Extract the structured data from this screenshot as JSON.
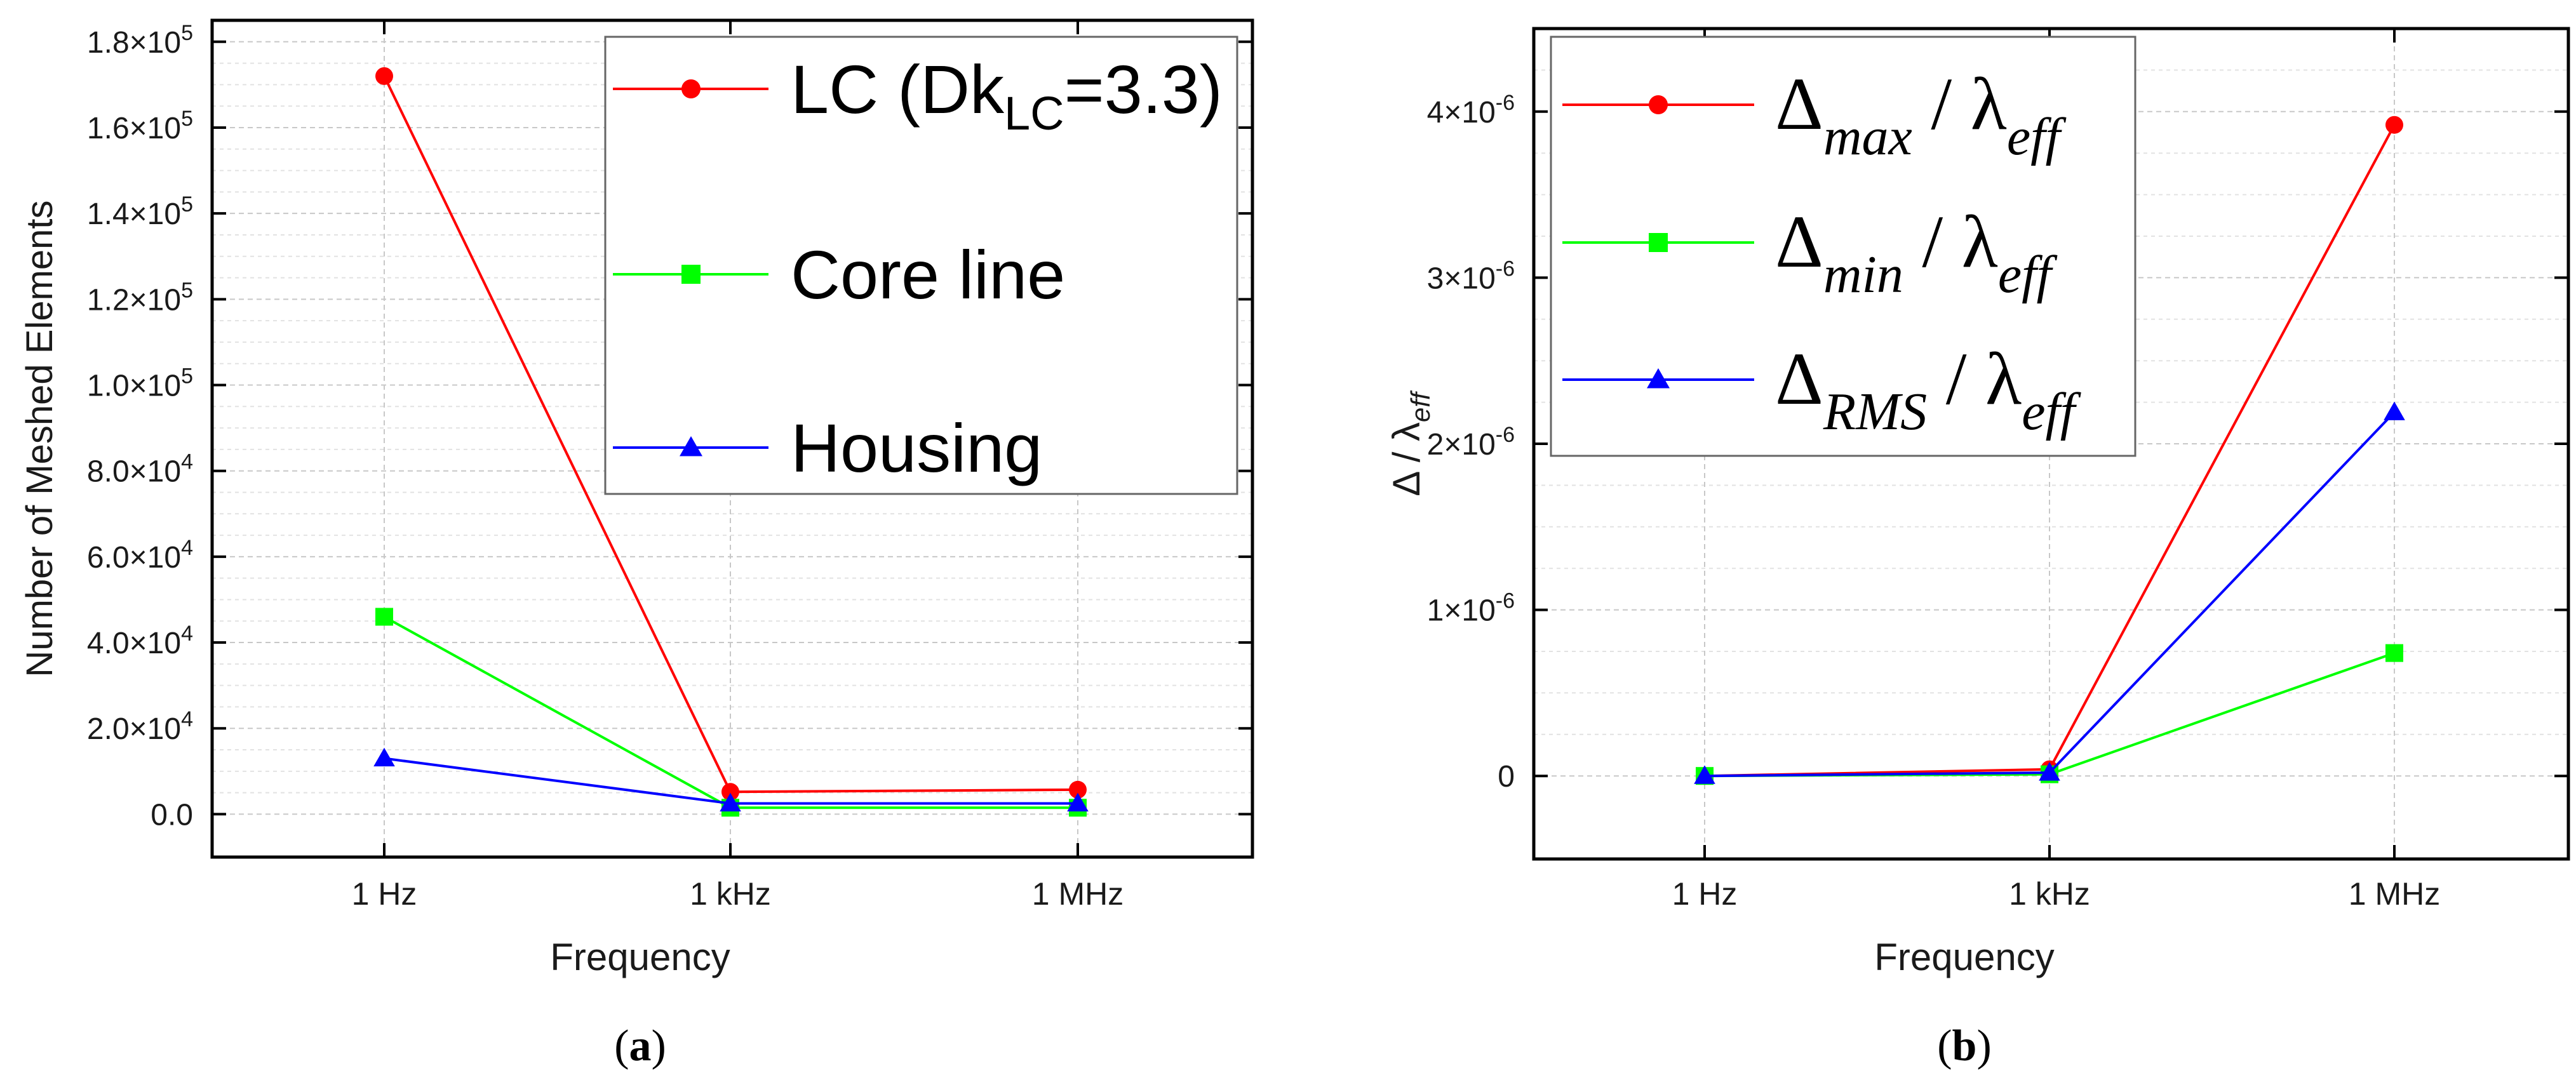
{
  "chart_data": [
    {
      "type": "line",
      "panel_label": "a",
      "xlabel": "Frequency",
      "ylabel": "Number of Meshed Elements",
      "categories": [
        "1 Hz",
        "1 kHz",
        "1 MHz"
      ],
      "ylim": [
        -10000,
        185000
      ],
      "y_ticks": [
        {
          "value": 0,
          "label": "0.0"
        },
        {
          "value": 20000,
          "label": "2.0×10^4"
        },
        {
          "value": 40000,
          "label": "4.0×10^4"
        },
        {
          "value": 60000,
          "label": "6.0×10^4"
        },
        {
          "value": 80000,
          "label": "8.0×10^4"
        },
        {
          "value": 100000,
          "label": "1.0×10^5"
        },
        {
          "value": 120000,
          "label": "1.2×10^5"
        },
        {
          "value": 140000,
          "label": "1.4×10^5"
        },
        {
          "value": 160000,
          "label": "1.6×10^5"
        },
        {
          "value": 180000,
          "label": "1.8×10^5"
        }
      ],
      "grid": true,
      "legend_position": "top-right",
      "series": [
        {
          "name": "LC (DkLC=3.3)",
          "legend_main": "LC (Dk",
          "legend_sub": "LC",
          "legend_tail": "=3.3)",
          "color": "#ff0000",
          "marker": "circle",
          "values": [
            172000,
            5200,
            5700
          ]
        },
        {
          "name": "Core line",
          "color": "#00ff00",
          "marker": "square",
          "values": [
            46000,
            1500,
            1500
          ]
        },
        {
          "name": "Housing",
          "color": "#0000ff",
          "marker": "triangle",
          "values": [
            13000,
            2500,
            2500
          ]
        }
      ]
    },
    {
      "type": "line",
      "panel_label": "b",
      "xlabel": "Frequency",
      "ylabel": "Δ / λeff",
      "ylabel_main": "Δ / λ",
      "ylabel_sub": "eff",
      "categories": [
        "1 Hz",
        "1 kHz",
        "1 MHz"
      ],
      "ylim": [
        -5e-07,
        4.5e-06
      ],
      "y_ticks": [
        {
          "value": 0,
          "label": "0"
        },
        {
          "value": 1e-06,
          "label": "1×10^-6"
        },
        {
          "value": 2e-06,
          "label": "2×10^-6"
        },
        {
          "value": 3e-06,
          "label": "3×10^-6"
        },
        {
          "value": 4e-06,
          "label": "4×10^-6"
        }
      ],
      "grid": true,
      "legend_position": "top-left",
      "series": [
        {
          "name": "Δmax / λeff",
          "delta": "Δ",
          "sub1": "max",
          "mid": " / λ",
          "sub2": "eff",
          "color": "#ff0000",
          "marker": "circle",
          "values": [
            0,
            4e-08,
            3.92e-06
          ]
        },
        {
          "name": "Δmin / λeff",
          "delta": "Δ",
          "sub1": "min",
          "mid": " / λ",
          "sub2": "eff",
          "color": "#00ff00",
          "marker": "square",
          "values": [
            0,
            1e-08,
            7.4e-07
          ]
        },
        {
          "name": "ΔRMS / λeff",
          "delta": "Δ",
          "sub1": "RMS",
          "mid": " / λ",
          "sub2": "eff",
          "color": "#0000ff",
          "marker": "triangle",
          "values": [
            0,
            2e-08,
            2.19e-06
          ]
        }
      ]
    }
  ]
}
